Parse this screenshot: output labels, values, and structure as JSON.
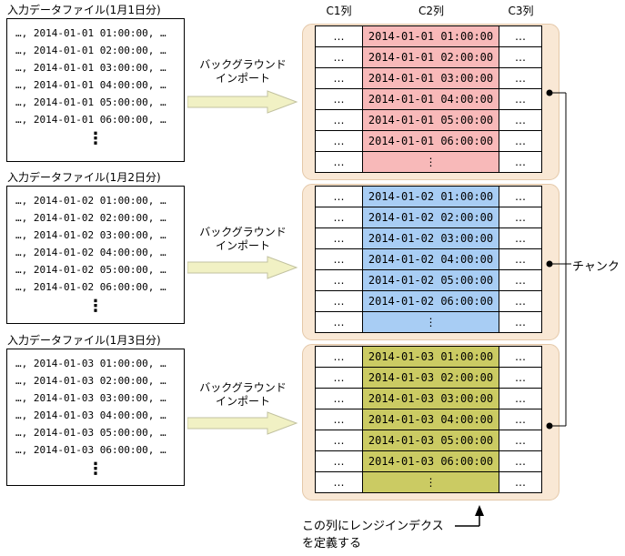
{
  "files": [
    {
      "title": "入力データファイル(1月1日分)",
      "lines": [
        "…, 2014-01-01 01:00:00, …",
        "…, 2014-01-01 02:00:00, …",
        "…, 2014-01-01 03:00:00, …",
        "…, 2014-01-01 04:00:00, …",
        "…, 2014-01-01 05:00:00, …",
        "…, 2014-01-01 06:00:00, …"
      ],
      "ellipsis": "⋮"
    },
    {
      "title": "入力データファイル(1月2日分)",
      "lines": [
        "…, 2014-01-02 01:00:00, …",
        "…, 2014-01-02 02:00:00, …",
        "…, 2014-01-02 03:00:00, …",
        "…, 2014-01-02 04:00:00, …",
        "…, 2014-01-02 05:00:00, …",
        "…, 2014-01-02 06:00:00, …"
      ],
      "ellipsis": "⋮"
    },
    {
      "title": "入力データファイル(1月3日分)",
      "lines": [
        "…, 2014-01-03 01:00:00, …",
        "…, 2014-01-03 02:00:00, …",
        "…, 2014-01-03 03:00:00, …",
        "…, 2014-01-03 04:00:00, …",
        "…, 2014-01-03 05:00:00, …",
        "…, 2014-01-03 06:00:00, …"
      ],
      "ellipsis": "⋮"
    }
  ],
  "import_arrow": {
    "label_line1": "バックグラウンド",
    "label_line2": "インポート"
  },
  "table": {
    "headers": [
      "C1列",
      "C2列",
      "C3列"
    ],
    "chunks": [
      {
        "color": "#f8b9b9",
        "rows": [
          [
            "…",
            "2014-01-01 01:00:00",
            "…"
          ],
          [
            "…",
            "2014-01-01 02:00:00",
            "…"
          ],
          [
            "…",
            "2014-01-01 03:00:00",
            "…"
          ],
          [
            "…",
            "2014-01-01 04:00:00",
            "…"
          ],
          [
            "…",
            "2014-01-01 05:00:00",
            "…"
          ],
          [
            "…",
            "2014-01-01 06:00:00",
            "…"
          ],
          [
            "…",
            "⋮",
            "…"
          ]
        ]
      },
      {
        "color": "#a8cdf4",
        "rows": [
          [
            "…",
            "2014-01-02 01:00:00",
            "…"
          ],
          [
            "…",
            "2014-01-02 02:00:00",
            "…"
          ],
          [
            "…",
            "2014-01-02 03:00:00",
            "…"
          ],
          [
            "…",
            "2014-01-02 04:00:00",
            "…"
          ],
          [
            "…",
            "2014-01-02 05:00:00",
            "…"
          ],
          [
            "…",
            "2014-01-02 06:00:00",
            "…"
          ],
          [
            "…",
            "⋮",
            "…"
          ]
        ]
      },
      {
        "color": "#cbcb63",
        "rows": [
          [
            "…",
            "2014-01-03 01:00:00",
            "…"
          ],
          [
            "…",
            "2014-01-03 02:00:00",
            "…"
          ],
          [
            "…",
            "2014-01-03 03:00:00",
            "…"
          ],
          [
            "…",
            "2014-01-03 04:00:00",
            "…"
          ],
          [
            "…",
            "2014-01-03 05:00:00",
            "…"
          ],
          [
            "…",
            "2014-01-03 06:00:00",
            "…"
          ],
          [
            "…",
            "⋮",
            "…"
          ]
        ]
      }
    ]
  },
  "chunk_callout": {
    "label": "チャンク"
  },
  "range_index_note": {
    "line1": "この列にレンジインデクス",
    "line2": "を定義する"
  },
  "colors": {
    "chunk_bg": "#f9e8d5",
    "chunk_border": "#e4c8a9",
    "chunk1_row": "#f8b9b9",
    "chunk2_row": "#a8cdf4",
    "chunk3_row": "#cbcb63",
    "arrow_fill": "#f1f1c4",
    "arrow_stroke": "#c2c2a0"
  }
}
